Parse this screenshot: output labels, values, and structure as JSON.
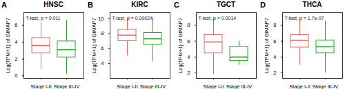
{
  "chart_data": [
    {
      "type": "box",
      "panel": "A",
      "title": "HNSC",
      "subtitle": "T-test, p = 0.011",
      "y_label": "Log(TPM+1) of GIMAP7",
      "categories": [
        "Stage I-II",
        "Stage III-IV"
      ],
      "colors": [
        "#f0605a",
        "#1fae1f"
      ],
      "boxes": [
        {
          "q1": 2.7,
          "median": 3.6,
          "q3": 4.5,
          "whisker_low": 0.8,
          "whisker_high": 6.3
        },
        {
          "q1": 2.2,
          "median": 3.1,
          "q3": 4.1,
          "whisker_low": 0.2,
          "whisker_high": 6.6
        }
      ],
      "ylim": [
        -0.3,
        7.5
      ],
      "yticks": [
        0,
        2,
        4,
        6
      ]
    },
    {
      "type": "box",
      "panel": "B",
      "title": "KIRC",
      "subtitle": "T-test, p = 0.00024",
      "y_label": "Log(TPM+1) of GIMAP7",
      "categories": [
        "Stage I-II",
        "Stage III-IV"
      ],
      "colors": [
        "#f0605a",
        "#1fae1f"
      ],
      "boxes": [
        {
          "q1": 7.0,
          "median": 7.8,
          "q3": 8.5,
          "whisker_low": 5.0,
          "whisker_high": 10.0
        },
        {
          "q1": 6.5,
          "median": 7.3,
          "q3": 8.1,
          "whisker_low": 4.3,
          "whisker_high": 10.0
        }
      ],
      "ylim": [
        2.0,
        10.8
      ],
      "yticks": [
        4,
        6,
        8,
        10
      ]
    },
    {
      "type": "box",
      "panel": "C",
      "title": "TGCT",
      "subtitle": "T-test, p = 0.0014",
      "y_label": "Log(TPM+1) of GIMAP7",
      "categories": [
        "Stage I-II",
        "Stage III-IV"
      ],
      "colors": [
        "#f0605a",
        "#1fae1f"
      ],
      "boxes": [
        {
          "q1": 4.5,
          "median": 5.9,
          "q3": 6.8,
          "whisker_low": 1.8,
          "whisker_high": 9.0
        },
        {
          "q1": 3.5,
          "median": 4.0,
          "q3": 5.3,
          "whisker_low": 3.0,
          "whisker_high": 6.0
        }
      ],
      "ylim": [
        1.3,
        9.6
      ],
      "yticks": [
        2,
        4,
        6,
        8
      ]
    },
    {
      "type": "box",
      "panel": "D",
      "title": "THCA",
      "subtitle": "T-test, p = 1.7e-07",
      "y_label": "Log(TPM+1) of GIMAP7",
      "categories": [
        "Stage I-II",
        "Stage III-IV"
      ],
      "colors": [
        "#f0605a",
        "#1fae1f"
      ],
      "boxes": [
        {
          "q1": 5.2,
          "median": 6.1,
          "q3": 6.8,
          "whisker_low": 3.0,
          "whisker_high": 9.0
        },
        {
          "q1": 4.5,
          "median": 5.3,
          "q3": 6.1,
          "whisker_low": 2.0,
          "whisker_high": 8.5
        }
      ],
      "ylim": [
        1.3,
        9.6
      ],
      "yticks": [
        2,
        4,
        6,
        8
      ]
    }
  ]
}
